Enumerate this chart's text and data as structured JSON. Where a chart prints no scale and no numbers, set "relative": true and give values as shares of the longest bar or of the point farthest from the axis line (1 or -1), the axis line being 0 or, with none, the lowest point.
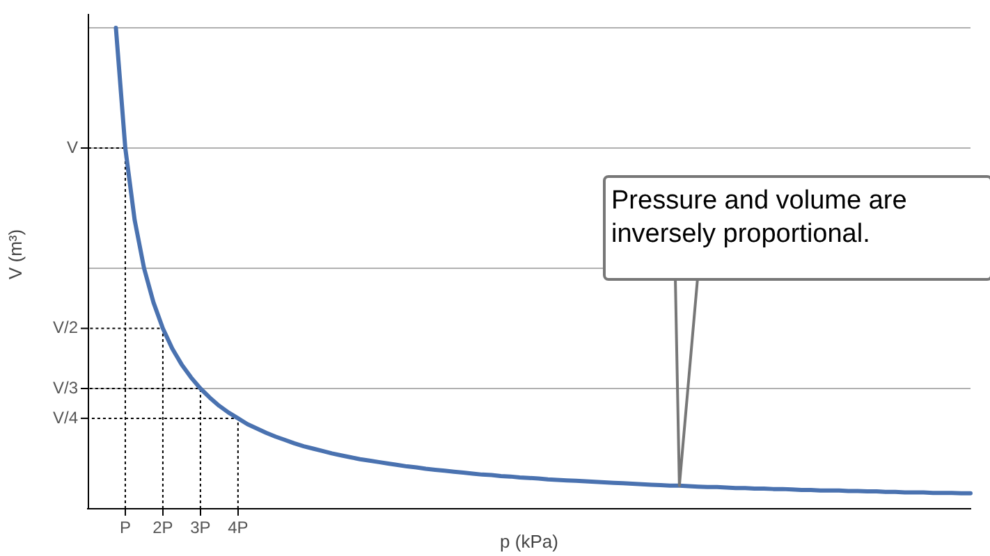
{
  "chart_data": {
    "type": "line",
    "xlabel": "p (kPa)",
    "ylabel": "V (m³)",
    "relative": true,
    "categories": [
      null,
      null,
      null,
      null,
      "P",
      null,
      null,
      null,
      "2P",
      null,
      null,
      null,
      "3P",
      null,
      null,
      null,
      "4P",
      null,
      null,
      null,
      null,
      null,
      null,
      null,
      null,
      null,
      null,
      null,
      null,
      null,
      null,
      null,
      null,
      null,
      null,
      null,
      null,
      null,
      null,
      null,
      null,
      null,
      null,
      null,
      null,
      null,
      null,
      null,
      null,
      null,
      null,
      null,
      null,
      null,
      null,
      null,
      null,
      null,
      null,
      null,
      null,
      null,
      null,
      null,
      null,
      null,
      null,
      null,
      null,
      null,
      null,
      null,
      null,
      null,
      null,
      null,
      null,
      null,
      null,
      null,
      null,
      null,
      null,
      null,
      null,
      null,
      null,
      null,
      null,
      null,
      null,
      null,
      null,
      null,
      null
    ],
    "series": [
      {
        "color": "#4a72b0",
        "values": [
          null,
          null,
          null,
          1,
          0.75,
          0.6,
          0.5,
          0.429,
          0.375,
          0.333,
          0.3,
          0.273,
          0.25,
          0.231,
          0.214,
          0.2,
          0.188,
          0.176,
          0.167,
          0.158,
          0.15,
          0.143,
          0.136,
          0.13,
          0.125,
          0.12,
          0.115,
          0.111,
          0.107,
          0.103,
          0.1,
          0.097,
          0.094,
          0.091,
          0.088,
          0.086,
          0.083,
          0.081,
          0.079,
          0.077,
          0.075,
          0.073,
          0.071,
          0.07,
          0.068,
          0.067,
          0.065,
          0.064,
          0.063,
          0.061,
          0.06,
          0.059,
          0.058,
          0.057,
          0.056,
          0.055,
          0.054,
          0.053,
          0.052,
          0.051,
          0.05,
          0.049,
          0.048,
          0.048,
          0.047,
          0.046,
          0.045,
          0.045,
          0.044,
          0.043,
          0.043,
          0.042,
          0.042,
          0.041,
          0.041,
          0.04,
          0.039,
          0.039,
          0.038,
          0.038,
          0.038,
          0.037,
          0.037,
          0.036,
          0.036,
          0.035,
          0.035,
          0.034,
          0.034,
          0.034,
          0.033,
          0.033,
          0.033,
          0.032,
          0.032
        ]
      }
    ],
    "ref_lines": [
      {
        "axis": "y",
        "value": 0.25,
        "color": "#b0b0b0"
      },
      {
        "axis": "y",
        "value": 0.5,
        "color": "#b0b0b0"
      },
      {
        "axis": "y",
        "value": 0.75,
        "color": "#b0b0b0"
      },
      {
        "axis": "y",
        "value": 1,
        "color": "#b0b0b0"
      }
    ],
    "annotations": [
      "V",
      "V/2",
      "V/3",
      "V/4",
      "Pressure and volume are inversely proportional."
    ],
    "grid": false,
    "legend": false,
    "marker": "none",
    "line_style": "solid"
  }
}
